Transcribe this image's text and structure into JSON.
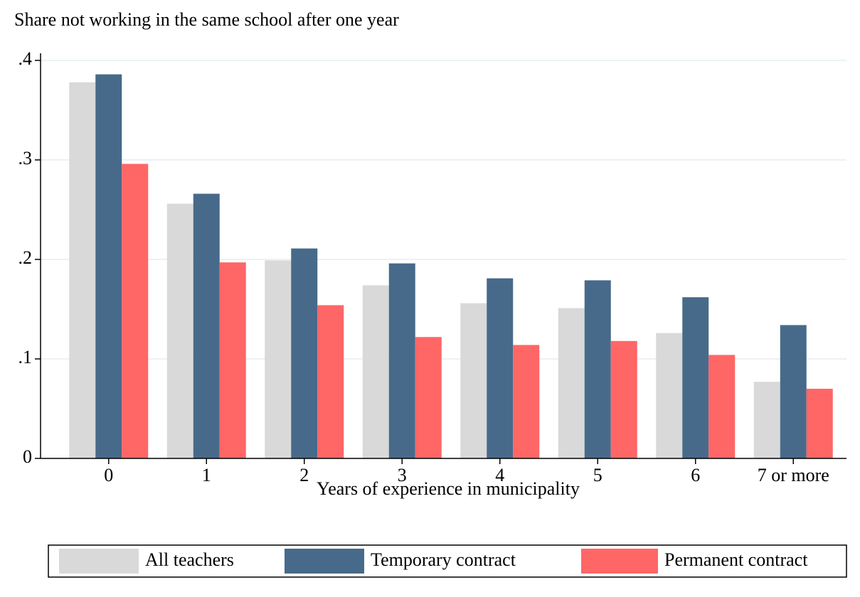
{
  "chart_data": {
    "type": "bar",
    "y_title": "Share not working in the same school after one year",
    "x_title": "Years of experience in municipality",
    "categories": [
      "0",
      "1",
      "2",
      "3",
      "4",
      "5",
      "6",
      "7 or more"
    ],
    "series": [
      {
        "name": "All teachers",
        "color": "#d9d9d9",
        "values": [
          0.378,
          0.256,
          0.199,
          0.174,
          0.156,
          0.151,
          0.126,
          0.077
        ]
      },
      {
        "name": "Temporary contract",
        "color": "#486a8a",
        "values": [
          0.386,
          0.266,
          0.211,
          0.196,
          0.181,
          0.179,
          0.162,
          0.134
        ]
      },
      {
        "name": "Permanent contract",
        "color": "#ff6666",
        "values": [
          0.296,
          0.197,
          0.154,
          0.122,
          0.114,
          0.118,
          0.104,
          0.07
        ]
      }
    ],
    "ylim": [
      0,
      0.4
    ],
    "yticks": [
      0,
      {
        "value": 0.1,
        "label": ".1"
      },
      {
        "value": 0.2,
        "label": ".2"
      },
      {
        "value": 0.3,
        "label": ".3"
      },
      {
        "value": 0.4,
        "label": ".4"
      }
    ],
    "grid": true,
    "legend": "bottom"
  }
}
